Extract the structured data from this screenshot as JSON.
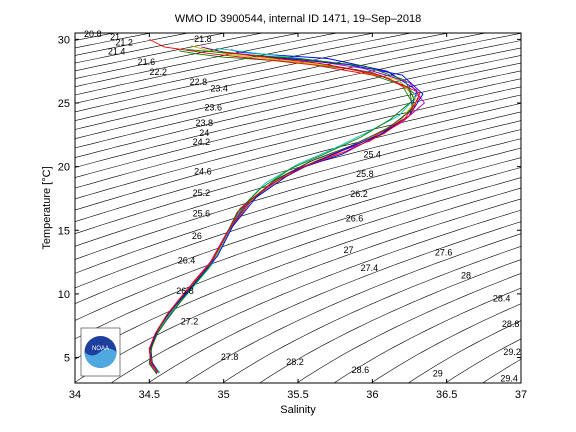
{
  "chart_data": {
    "type": "line",
    "title": "WMO ID 3900544, internal ID 1471, 19–Sep–2018",
    "xlabel": "Salinity",
    "ylabel": "Temperature [°C]",
    "xlim": [
      34,
      37
    ],
    "ylim": [
      3,
      30.5
    ],
    "x_ticks": [
      34,
      34.5,
      35,
      35.5,
      36,
      36.5,
      37
    ],
    "x_tick_labels": [
      "34",
      "34.5",
      "35",
      "35.5",
      "36",
      "36.5",
      "37"
    ],
    "y_ticks": [
      5,
      10,
      15,
      20,
      25,
      30
    ],
    "y_tick_labels": [
      "5",
      "10",
      "15",
      "20",
      "25",
      "30"
    ],
    "grid": false,
    "logo_text": "NOAA",
    "density_contour_labels": [
      {
        "text": "20.8",
        "s": 34.12,
        "t": 30.2
      },
      {
        "text": "21",
        "s": 34.27,
        "t": 29.95
      },
      {
        "text": "21.2",
        "s": 34.33,
        "t": 29.5
      },
      {
        "text": "21.4",
        "s": 34.28,
        "t": 28.8
      },
      {
        "text": "21.6",
        "s": 34.48,
        "t": 28.0
      },
      {
        "text": "22.2",
        "s": 34.56,
        "t": 27.2
      },
      {
        "text": "21.8",
        "s": 34.86,
        "t": 29.8
      },
      {
        "text": "22.8",
        "s": 34.83,
        "t": 26.4
      },
      {
        "text": "23.4",
        "s": 34.97,
        "t": 25.9
      },
      {
        "text": "23.6",
        "s": 34.93,
        "t": 24.4
      },
      {
        "text": "23.8",
        "s": 34.87,
        "t": 23.2
      },
      {
        "text": "24",
        "s": 34.87,
        "t": 22.4
      },
      {
        "text": "24.2",
        "s": 34.85,
        "t": 21.7
      },
      {
        "text": "24.6",
        "s": 34.86,
        "t": 19.4
      },
      {
        "text": "25.2",
        "s": 34.85,
        "t": 17.7
      },
      {
        "text": "25.6",
        "s": 34.85,
        "t": 16.1
      },
      {
        "text": "26",
        "s": 34.82,
        "t": 14.3
      },
      {
        "text": "26.4",
        "s": 34.75,
        "t": 12.4
      },
      {
        "text": "26.8",
        "s": 34.74,
        "t": 10.0
      },
      {
        "text": "27.2",
        "s": 34.77,
        "t": 7.6
      },
      {
        "text": "27.8",
        "s": 35.04,
        "t": 4.8
      },
      {
        "text": "28.2",
        "s": 35.48,
        "t": 4.4
      },
      {
        "text": "28.6",
        "s": 35.92,
        "t": 3.8
      },
      {
        "text": "29",
        "s": 36.44,
        "t": 3.5
      },
      {
        "text": "29.4",
        "s": 36.92,
        "t": 3.1
      },
      {
        "text": "29.2",
        "s": 36.94,
        "t": 5.2
      },
      {
        "text": "28.8",
        "s": 36.93,
        "t": 7.4
      },
      {
        "text": "28.4",
        "s": 36.87,
        "t": 9.4
      },
      {
        "text": "28",
        "s": 36.63,
        "t": 11.2
      },
      {
        "text": "27.6",
        "s": 36.48,
        "t": 13.0
      },
      {
        "text": "27.4",
        "s": 35.98,
        "t": 11.8
      },
      {
        "text": "27",
        "s": 35.84,
        "t": 13.2
      },
      {
        "text": "26.6",
        "s": 35.88,
        "t": 15.7
      },
      {
        "text": "26.2",
        "s": 35.91,
        "t": 17.6
      },
      {
        "text": "25.8",
        "s": 35.95,
        "t": 19.2
      },
      {
        "text": "25.4",
        "s": 36.0,
        "t": 20.7
      }
    ],
    "series": [
      {
        "color": "#0000ff",
        "values_s": [
          34.55,
          34.52,
          34.5,
          34.53,
          34.62,
          34.75,
          34.9,
          35.02,
          35.1,
          35.3,
          35.55,
          35.8,
          36.05,
          36.25,
          36.3,
          36.1,
          35.7,
          35.3,
          35.1,
          35.05
        ],
        "values_t": [
          3.8,
          4.5,
          5.5,
          6.5,
          8.0,
          10.0,
          12.0,
          14.5,
          16.5,
          18.5,
          20.0,
          21.0,
          22.5,
          24.0,
          26.0,
          27.5,
          28.5,
          28.8,
          29.0,
          29.2
        ]
      },
      {
        "color": "#008000",
        "values_s": [
          34.56,
          34.51,
          34.51,
          34.55,
          34.64,
          34.78,
          34.93,
          35.03,
          35.14,
          35.35,
          35.62,
          35.9,
          36.15,
          36.28,
          36.2,
          35.9,
          35.4,
          35.0,
          34.8,
          34.7
        ],
        "values_t": [
          3.9,
          4.7,
          5.8,
          7.0,
          8.5,
          10.5,
          12.7,
          15.0,
          17.0,
          19.0,
          20.6,
          21.8,
          23.2,
          24.8,
          26.4,
          27.6,
          28.3,
          28.6,
          28.9,
          29.1
        ]
      },
      {
        "color": "#ff0000",
        "values_s": [
          34.55,
          34.5,
          34.52,
          34.58,
          34.67,
          34.8,
          34.95,
          35.05,
          35.2,
          35.45,
          35.75,
          36.0,
          36.22,
          36.32,
          36.1,
          35.6,
          35.2,
          34.9,
          34.6,
          34.5
        ],
        "values_t": [
          3.7,
          4.6,
          6.0,
          7.5,
          9.0,
          11.0,
          13.0,
          15.2,
          17.5,
          19.6,
          21.0,
          22.3,
          23.8,
          25.5,
          27.0,
          28.0,
          28.5,
          28.9,
          29.4,
          30.0
        ]
      },
      {
        "color": "#00bfbf",
        "values_s": [
          34.57,
          34.52,
          34.51,
          34.54,
          34.63,
          34.77,
          34.92,
          35.03,
          35.12,
          35.28,
          35.5,
          35.72,
          35.95,
          36.18,
          36.3,
          36.15,
          35.85,
          35.45,
          35.15,
          34.95
        ],
        "values_t": [
          3.8,
          4.6,
          5.6,
          6.8,
          8.3,
          10.2,
          12.3,
          14.7,
          16.8,
          18.7,
          20.2,
          21.3,
          22.6,
          24.0,
          25.6,
          27.0,
          28.0,
          28.6,
          29.0,
          29.3
        ]
      },
      {
        "color": "#bf00bf",
        "values_s": [
          34.56,
          34.51,
          34.5,
          34.54,
          34.62,
          34.76,
          34.91,
          35.02,
          35.16,
          35.4,
          35.68,
          35.98,
          36.2,
          36.35,
          36.25,
          35.95,
          35.55,
          35.25,
          35.0,
          34.85
        ],
        "values_t": [
          3.8,
          4.5,
          5.7,
          6.9,
          8.4,
          10.4,
          12.5,
          14.8,
          17.2,
          19.2,
          20.8,
          22.0,
          23.5,
          25.0,
          26.6,
          27.7,
          28.4,
          28.7,
          29.0,
          29.4
        ]
      },
      {
        "color": "#bfbf00",
        "values_s": [
          34.55,
          34.51,
          34.51,
          34.56,
          34.65,
          34.79,
          34.94,
          35.04,
          35.18,
          35.42,
          35.7,
          35.96,
          36.18,
          36.3,
          36.18,
          35.8,
          35.35,
          35.05,
          34.9,
          34.78
        ],
        "values_t": [
          3.9,
          4.8,
          5.9,
          7.2,
          8.7,
          10.7,
          12.8,
          15.1,
          17.3,
          19.3,
          20.9,
          22.1,
          23.6,
          25.2,
          26.8,
          27.8,
          28.4,
          28.8,
          29.1,
          29.5
        ]
      },
      {
        "color": "#404040",
        "values_s": [
          34.56,
          34.52,
          34.51,
          34.55,
          34.63,
          34.77,
          34.92,
          35.03,
          35.15,
          35.33,
          35.58,
          35.85,
          36.1,
          36.27,
          36.25,
          36.0,
          35.6,
          35.2,
          35.0,
          34.88
        ],
        "values_t": [
          3.8,
          4.6,
          5.7,
          7.0,
          8.5,
          10.4,
          12.5,
          14.9,
          16.9,
          18.8,
          20.4,
          21.6,
          23.0,
          24.5,
          26.2,
          27.4,
          28.2,
          28.7,
          29.0,
          29.3
        ]
      },
      {
        "color": "#0000ff",
        "values_s": [
          34.56,
          34.51,
          34.51,
          34.56,
          34.66,
          34.81,
          34.96,
          35.06,
          35.22,
          35.48,
          35.78,
          36.05,
          36.25,
          36.34,
          36.2,
          35.85,
          35.5,
          35.3,
          35.2,
          35.15
        ],
        "values_t": [
          3.8,
          4.7,
          5.9,
          7.3,
          8.9,
          10.9,
          13.0,
          15.3,
          17.6,
          19.7,
          21.2,
          22.5,
          24.0,
          25.7,
          27.2,
          28.0,
          28.4,
          28.6,
          28.7,
          28.8
        ]
      },
      {
        "color": "#008000",
        "values_s": [
          34.55,
          34.5,
          34.51,
          34.55,
          34.63,
          34.76,
          34.9,
          35.01,
          35.09,
          35.25,
          35.46,
          35.68,
          35.92,
          36.12,
          36.28,
          36.22,
          35.95,
          35.5,
          35.05,
          34.75
        ],
        "values_t": [
          3.7,
          4.5,
          5.6,
          6.8,
          8.2,
          10.1,
          12.1,
          14.5,
          16.4,
          18.3,
          19.9,
          21.0,
          22.3,
          23.7,
          25.3,
          26.8,
          27.9,
          28.5,
          28.9,
          29.2
        ]
      },
      {
        "color": "#ff0000",
        "values_s": [
          34.56,
          34.51,
          34.5,
          34.54,
          34.62,
          34.75,
          34.91,
          35.02,
          35.11,
          35.31,
          35.56,
          35.82,
          36.08,
          36.26,
          36.32,
          36.05,
          35.65,
          35.35,
          35.15,
          35.0
        ],
        "values_t": [
          3.8,
          4.6,
          5.7,
          6.9,
          8.4,
          10.3,
          12.4,
          14.7,
          16.7,
          18.6,
          20.1,
          21.2,
          22.6,
          24.1,
          25.8,
          27.2,
          28.1,
          28.5,
          28.8,
          29.0
        ]
      }
    ]
  }
}
